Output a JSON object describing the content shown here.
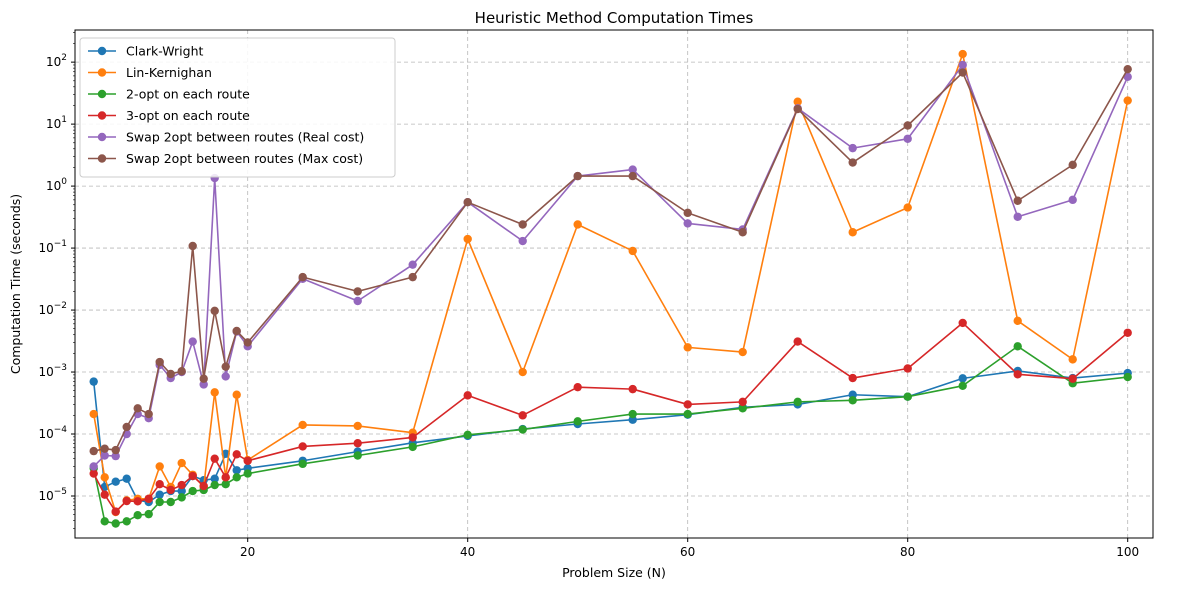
{
  "chart_data": {
    "type": "line",
    "title": "Heuristic Method Computation Times",
    "xlabel": "Problem Size (N)",
    "ylabel": "Computation Time (seconds)",
    "yscale": "log",
    "xlim": [
      4.3,
      102.3
    ],
    "ylim": [
      2.1e-06,
      330
    ],
    "x_ticks": [
      20,
      40,
      60,
      80,
      100
    ],
    "y_ticks": [
      {
        "value": 1e-05,
        "base": "10",
        "exp": "−5"
      },
      {
        "value": 0.0001,
        "base": "10",
        "exp": "−4"
      },
      {
        "value": 0.001,
        "base": "10",
        "exp": "−3"
      },
      {
        "value": 0.01,
        "base": "10",
        "exp": "−2"
      },
      {
        "value": 0.1,
        "base": "10",
        "exp": "−1"
      },
      {
        "value": 1,
        "base": "10",
        "exp": "0"
      },
      {
        "value": 10,
        "base": "10",
        "exp": "1"
      },
      {
        "value": 100,
        "base": "10",
        "exp": "2"
      }
    ],
    "grid": true,
    "legend_position": "top-left",
    "x": [
      6,
      7,
      8,
      9,
      10,
      11,
      12,
      13,
      14,
      15,
      16,
      17,
      18,
      19,
      20,
      25,
      30,
      35,
      40,
      45,
      50,
      55,
      60,
      65,
      70,
      75,
      80,
      85,
      90,
      95,
      100
    ],
    "series": [
      {
        "name": "Clark-Wright",
        "color": "#1f77b4",
        "values": [
          0.0007,
          1.4e-05,
          1.7e-05,
          1.9e-05,
          8.5e-06,
          8e-06,
          1.05e-05,
          1.2e-05,
          1.2e-05,
          2.1e-05,
          1.8e-05,
          1.9e-05,
          4.8e-05,
          2.6e-05,
          2.8e-05,
          3.7e-05,
          5.2e-05,
          7.2e-05,
          9.3e-05,
          0.00012,
          0.000145,
          0.00017,
          0.000205,
          0.00027,
          0.0003,
          0.00043,
          0.0004,
          0.00079,
          0.00104,
          0.0008,
          0.00096
        ]
      },
      {
        "name": "Lin-Kernighan",
        "color": "#ff7f0e",
        "values": [
          0.00021,
          2e-05,
          5.5e-06,
          8.5e-06,
          9e-06,
          9e-06,
          3e-05,
          1.4e-05,
          3.4e-05,
          2.2e-05,
          1.4e-05,
          0.00047,
          2e-05,
          0.00043,
          3.8e-05,
          0.00014,
          0.000135,
          0.000105,
          0.14,
          0.001,
          0.24,
          0.09,
          0.0025,
          0.0021,
          23,
          0.18,
          0.45,
          135,
          0.0067,
          0.0016,
          24
        ]
      },
      {
        "name": "2-opt on each route",
        "color": "#2ca02c",
        "values": [
          2.8e-05,
          3.9e-06,
          3.6e-06,
          3.9e-06,
          4.9e-06,
          5.1e-06,
          8e-06,
          8e-06,
          9.5e-06,
          1.2e-05,
          1.25e-05,
          1.5e-05,
          1.55e-05,
          2e-05,
          2.3e-05,
          3.3e-05,
          4.5e-05,
          6.2e-05,
          9.7e-05,
          0.000118,
          0.00016,
          0.00021,
          0.00021,
          0.00026,
          0.00033,
          0.00035,
          0.0004,
          0.0006,
          0.0026,
          0.00066,
          0.00083
        ]
      },
      {
        "name": "3-opt on each route",
        "color": "#d62728",
        "values": [
          2.3e-05,
          1.05e-05,
          5.6e-06,
          8.3e-06,
          8.2e-06,
          9e-06,
          1.55e-05,
          1.25e-05,
          1.5e-05,
          2.1e-05,
          1.45e-05,
          4e-05,
          2e-05,
          4.7e-05,
          3.7e-05,
          6.3e-05,
          7.1e-05,
          8.8e-05,
          0.00042,
          0.0002,
          0.00057,
          0.00053,
          0.0003,
          0.00033,
          0.0031,
          0.0008,
          0.00114,
          0.0062,
          0.00092,
          0.00078,
          0.0043
        ]
      },
      {
        "name": "Swap 2opt between routes (Real cost)",
        "color": "#9467bd",
        "values": [
          3e-05,
          4.5e-05,
          4.4e-05,
          0.0001,
          0.00021,
          0.00018,
          0.0013,
          0.0008,
          0.001,
          0.0031,
          0.00063,
          1.35,
          0.00085,
          0.0045,
          0.0026,
          0.032,
          0.014,
          0.054,
          0.55,
          0.13,
          1.45,
          1.85,
          0.25,
          0.2,
          18,
          4.1,
          5.8,
          90,
          0.32,
          0.6,
          58
        ]
      },
      {
        "name": "Swap 2opt between routes (Max cost)",
        "color": "#8c564b",
        "values": [
          5.3e-05,
          5.8e-05,
          5.5e-05,
          0.00013,
          0.00026,
          0.00021,
          0.00145,
          0.00093,
          0.00103,
          0.108,
          0.00078,
          0.0097,
          0.00122,
          0.0046,
          0.003,
          0.034,
          0.02,
          0.034,
          0.55,
          0.24,
          1.45,
          1.45,
          0.37,
          0.18,
          17.5,
          2.4,
          9.5,
          68,
          0.58,
          2.2,
          77
        ]
      }
    ]
  }
}
